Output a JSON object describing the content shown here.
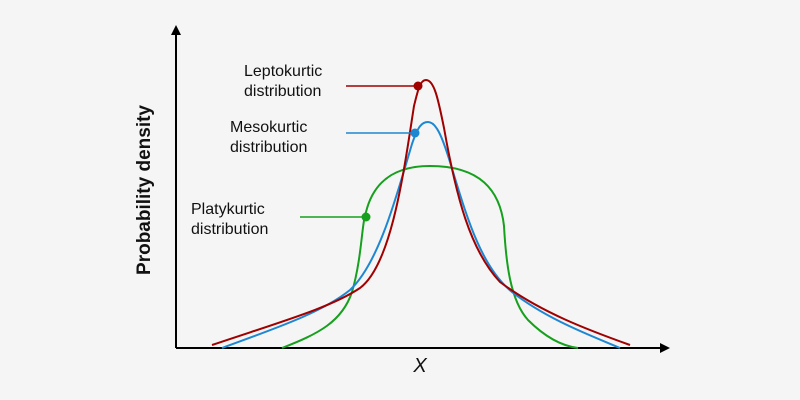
{
  "colors": {
    "background": "#f5f5f5",
    "axis": "#000000",
    "leptokurtic": "#a00000",
    "mesokurtic": "#1e87d2",
    "platykurtic": "#16a01e"
  },
  "diagram": {
    "y_axis_title": "Probability density",
    "x_axis_title": "X",
    "curves": [
      {
        "key": "leptokurtic",
        "label_line1": "Leptokurtic",
        "label_line2": "distribution"
      },
      {
        "key": "mesokurtic",
        "label_line1": "Mesokurtic",
        "label_line2": "distribution"
      },
      {
        "key": "platykurtic",
        "label_line1": "Platykurtic",
        "label_line2": "distribution"
      }
    ]
  }
}
